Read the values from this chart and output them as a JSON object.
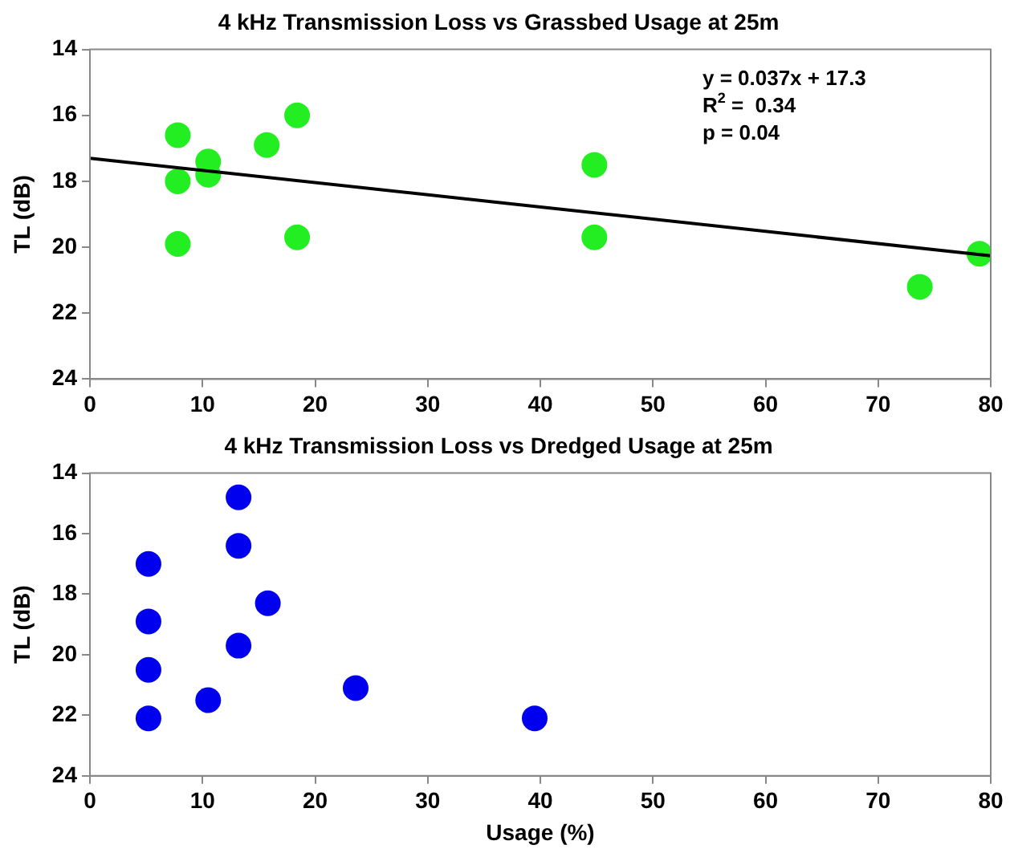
{
  "chart_data": [
    {
      "type": "scatter",
      "title": "4 kHz Transmission Loss vs Grassbed Usage at 25m",
      "ylabel": "TL (dB)",
      "xlim": [
        0,
        80
      ],
      "xticks": [
        0,
        10,
        20,
        30,
        40,
        50,
        60,
        70,
        80
      ],
      "ylim": [
        24,
        14
      ],
      "yticks": [
        14,
        16,
        18,
        20,
        22,
        24
      ],
      "grid": false,
      "legend": false,
      "marker": "circle",
      "annotations": [
        "y = 0.037x + 17.3",
        "R$^{2}$ =  0.34",
        "p = 0.04"
      ],
      "series": [
        {
          "color": "#22ee22",
          "x": [
            7.8,
            7.8,
            7.8,
            10.5,
            10.5,
            15.7,
            18.4,
            18.4,
            44.8,
            44.8,
            73.7,
            79
          ],
          "values": [
            16.6,
            18.0,
            19.9,
            17.4,
            17.8,
            16.9,
            16.0,
            19.7,
            17.5,
            19.7,
            21.2,
            20.2
          ]
        },
        {
          "type": "line",
          "color": "#000000",
          "marker": "none",
          "line_style": "solid",
          "x": [
            0,
            80
          ],
          "values": [
            17.3,
            20.26
          ]
        }
      ]
    },
    {
      "type": "scatter",
      "title": "4 kHz Transmission Loss vs Dredged Usage at 25m",
      "xlabel": "Usage (%)",
      "ylabel": "TL (dB)",
      "xlim": [
        0,
        80
      ],
      "xticks": [
        0,
        10,
        20,
        30,
        40,
        50,
        60,
        70,
        80
      ],
      "ylim": [
        24,
        14
      ],
      "yticks": [
        14,
        16,
        18,
        20,
        22,
        24
      ],
      "grid": false,
      "legend": false,
      "marker": "circle",
      "series": [
        {
          "color": "#0000ee",
          "x": [
            5.2,
            5.2,
            5.2,
            5.2,
            10.5,
            13.2,
            13.2,
            13.2,
            15.8,
            23.6,
            39.5
          ],
          "values": [
            17.0,
            18.9,
            20.5,
            22.1,
            21.5,
            14.8,
            16.4,
            19.7,
            18.3,
            21.1,
            22.1
          ]
        }
      ]
    }
  ]
}
